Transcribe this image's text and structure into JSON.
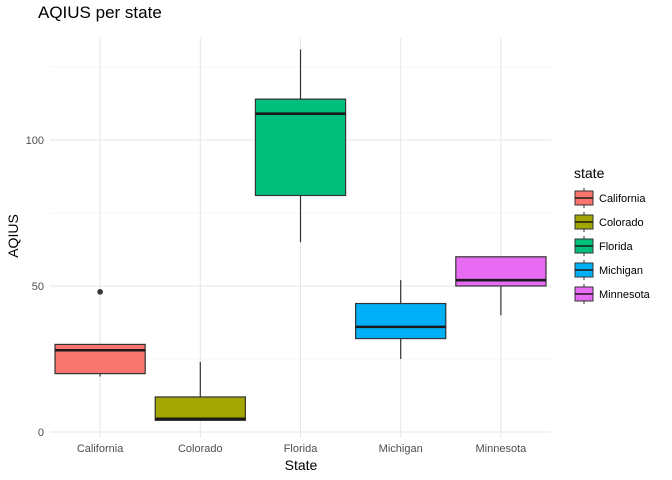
{
  "chart_data": {
    "type": "boxplot",
    "title": "AQIUS per state",
    "xlabel": "State",
    "ylabel": "AQIUS",
    "ylim": [
      -2,
      135
    ],
    "yticks": [
      0,
      50,
      100
    ],
    "ytick_labels": [
      "0",
      "50",
      "100"
    ],
    "categories": [
      "California",
      "Colorado",
      "Florida",
      "Michigan",
      "Minnesota"
    ],
    "colors": [
      "#F8766D",
      "#A3A500",
      "#00BF7D",
      "#00B0F6",
      "#E76BF3"
    ],
    "boxes": [
      {
        "category": "California",
        "whisker_low": 19,
        "q1": 20,
        "median": 28,
        "q3": 30,
        "whisker_high": 30,
        "outliers": [
          48
        ]
      },
      {
        "category": "Colorado",
        "whisker_low": 4,
        "q1": 4,
        "median": 4.5,
        "q3": 12,
        "whisker_high": 24,
        "outliers": []
      },
      {
        "category": "Florida",
        "whisker_low": 65,
        "q1": 81,
        "median": 109,
        "q3": 114,
        "whisker_high": 131,
        "outliers": []
      },
      {
        "category": "Michigan",
        "whisker_low": 25,
        "q1": 32,
        "median": 36,
        "q3": 44,
        "whisker_high": 52,
        "outliers": []
      },
      {
        "category": "Minnesota",
        "whisker_low": 40,
        "q1": 50,
        "median": 52,
        "q3": 60,
        "whisker_high": 60,
        "outliers": []
      }
    ],
    "legend": {
      "title": "state",
      "position": "right",
      "items": [
        "California",
        "Colorado",
        "Florida",
        "Michigan",
        "Minnesota"
      ]
    },
    "grid": true
  }
}
